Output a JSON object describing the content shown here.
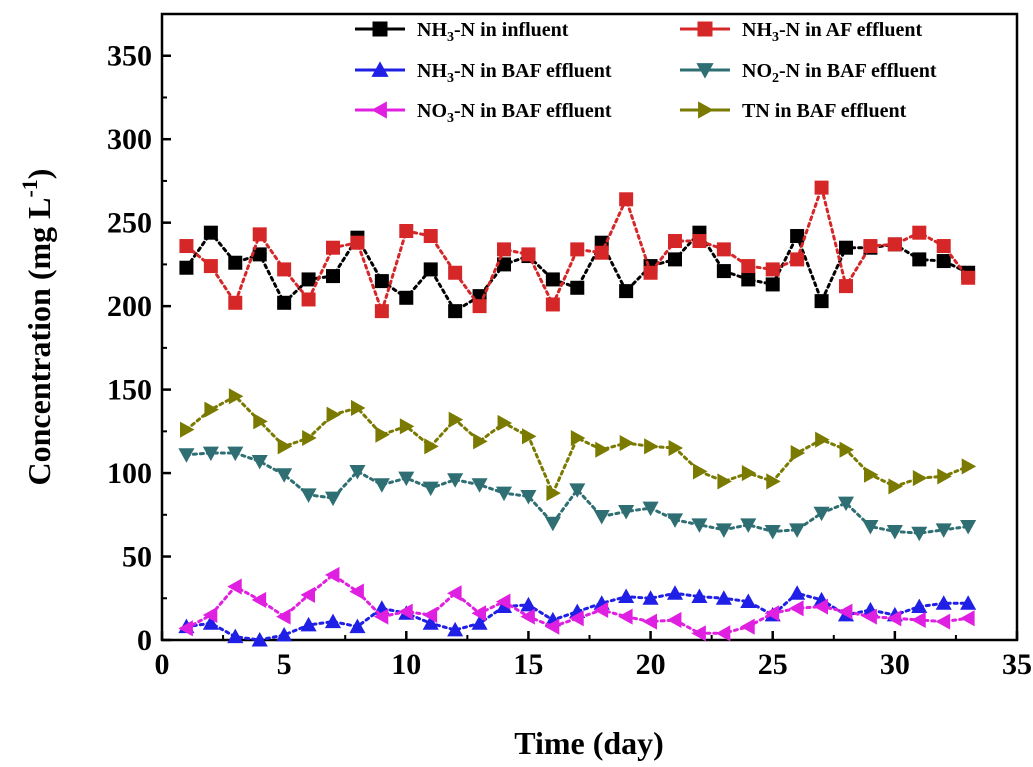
{
  "chart_data": {
    "type": "line",
    "xlabel": "Time (day)",
    "ylabel": "Concentration (mg L⁻¹)",
    "ylabel_parts": {
      "main": "Concentration (mg L",
      "sup": "-1",
      "close": ")"
    },
    "xlim": [
      0,
      35
    ],
    "ylim": [
      0,
      375
    ],
    "xticks": [
      0,
      5,
      10,
      15,
      20,
      25,
      30,
      35
    ],
    "yticks": [
      0,
      50,
      100,
      150,
      200,
      250,
      300,
      350
    ],
    "minor_ticks": true,
    "grid": false,
    "legend_placement": "top",
    "x": [
      1,
      2,
      3,
      4,
      5,
      6,
      7,
      8,
      9,
      10,
      11,
      12,
      13,
      14,
      15,
      16,
      17,
      18,
      19,
      20,
      21,
      22,
      23,
      24,
      25,
      26,
      27,
      28,
      29,
      30,
      31,
      32,
      33
    ],
    "series": [
      {
        "name": "NH3-N in influent",
        "label_parts": [
          [
            "NH",
            ""
          ],
          [
            "3",
            "sub"
          ],
          [
            "-N in influent",
            ""
          ]
        ],
        "color": "#000000",
        "marker": "square",
        "values": [
          223,
          244,
          226,
          231,
          202,
          216,
          218,
          241,
          215,
          205,
          222,
          197,
          206,
          225,
          230,
          216,
          211,
          238,
          209,
          224,
          228,
          244,
          221,
          216,
          213,
          242,
          203,
          235,
          235,
          237,
          228,
          227,
          220
        ]
      },
      {
        "name": "NH3-N  in AF effluent",
        "label_parts": [
          [
            "NH",
            ""
          ],
          [
            "3",
            "sub"
          ],
          [
            "-N  in AF effluent",
            ""
          ]
        ],
        "color": "#d62728",
        "marker": "square",
        "values": [
          236,
          224,
          202,
          243,
          222,
          204,
          235,
          238,
          197,
          245,
          242,
          220,
          200,
          234,
          231,
          201,
          234,
          232,
          264,
          220,
          239,
          239,
          234,
          224,
          222,
          228,
          271,
          212,
          236,
          237,
          244,
          236,
          217
        ]
      },
      {
        "name": "NH3-N in BAF effluent",
        "label_parts": [
          [
            "NH",
            ""
          ],
          [
            "3",
            "sub"
          ],
          [
            "-N in BAF effluent",
            ""
          ]
        ],
        "color": "#1f1fe6",
        "marker": "triangle-up",
        "values": [
          8,
          10,
          2,
          0,
          3,
          9,
          11,
          8,
          19,
          16,
          10,
          6,
          10,
          20,
          21,
          12,
          17,
          22,
          26,
          25,
          28,
          26,
          25,
          23,
          15,
          28,
          24,
          15,
          18,
          15,
          20,
          22,
          22
        ]
      },
      {
        "name": "NO2-N in BAF effluent",
        "label_parts": [
          [
            "NO",
            ""
          ],
          [
            "2",
            "sub"
          ],
          [
            "-N in BAF effluent",
            ""
          ]
        ],
        "color": "#2f6f73",
        "marker": "triangle-down",
        "values": [
          111,
          112,
          112,
          107,
          99,
          87,
          85,
          101,
          93,
          97,
          91,
          96,
          93,
          88,
          86,
          70,
          90,
          74,
          77,
          79,
          72,
          69,
          66,
          69,
          65,
          66,
          76,
          82,
          68,
          65,
          64,
          66,
          68
        ]
      },
      {
        "name": "NO3-N in BAF effluent",
        "label_parts": [
          [
            "NO",
            ""
          ],
          [
            "3",
            "sub"
          ],
          [
            "-N in BAF effluent",
            ""
          ]
        ],
        "color": "#e020e0",
        "marker": "triangle-left",
        "values": [
          7,
          15,
          32,
          24,
          14,
          27,
          39,
          29,
          14,
          17,
          15,
          28,
          16,
          23,
          14,
          8,
          13,
          18,
          14,
          11,
          12,
          4,
          4,
          8,
          16,
          19,
          20,
          17,
          14,
          13,
          12,
          11,
          13
        ]
      },
      {
        "name": "TN in BAF effluent",
        "label_parts": [
          [
            "TN in BAF effluent",
            ""
          ]
        ],
        "color": "#7a7a00",
        "marker": "triangle-right",
        "values": [
          126,
          138,
          146,
          131,
          116,
          121,
          135,
          139,
          123,
          128,
          116,
          132,
          119,
          130,
          122,
          88,
          121,
          114,
          118,
          116,
          115,
          101,
          95,
          100,
          95,
          112,
          120,
          114,
          99,
          92,
          97,
          98,
          104
        ]
      }
    ]
  }
}
